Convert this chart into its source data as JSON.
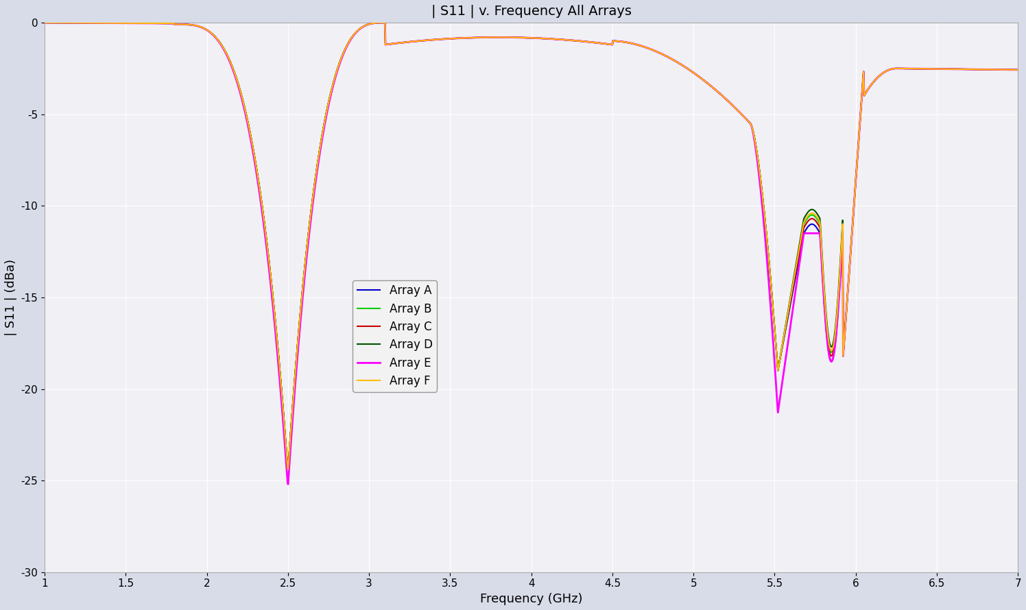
{
  "title": "| S11 | v. Frequency All Arrays",
  "xlabel": "Frequency (GHz)",
  "ylabel": "| S11 | (dBa)",
  "xlim": [
    1,
    7
  ],
  "ylim": [
    -30,
    0
  ],
  "yticks": [
    0,
    -5,
    -10,
    -15,
    -20,
    -25,
    -30
  ],
  "xticks": [
    1,
    1.5,
    2,
    2.5,
    3,
    3.5,
    4,
    4.5,
    5,
    5.5,
    6,
    6.5,
    7
  ],
  "fig_bg_color": "#d8dce8",
  "plot_bg_color": "#f0f0f5",
  "grid_color": "#ffffff",
  "arrays": [
    {
      "name": "Array A",
      "color": "#0000cc",
      "lw": 1.5,
      "variant": 0
    },
    {
      "name": "Array B",
      "color": "#00cc00",
      "lw": 1.5,
      "variant": 1
    },
    {
      "name": "Array C",
      "color": "#cc0000",
      "lw": 1.5,
      "variant": 2
    },
    {
      "name": "Array D",
      "color": "#005500",
      "lw": 1.5,
      "variant": 3
    },
    {
      "name": "Array E",
      "color": "#ff00ff",
      "lw": 2.0,
      "variant": 4
    },
    {
      "name": "Array F",
      "color": "#ffbb00",
      "lw": 1.5,
      "variant": 5
    }
  ]
}
